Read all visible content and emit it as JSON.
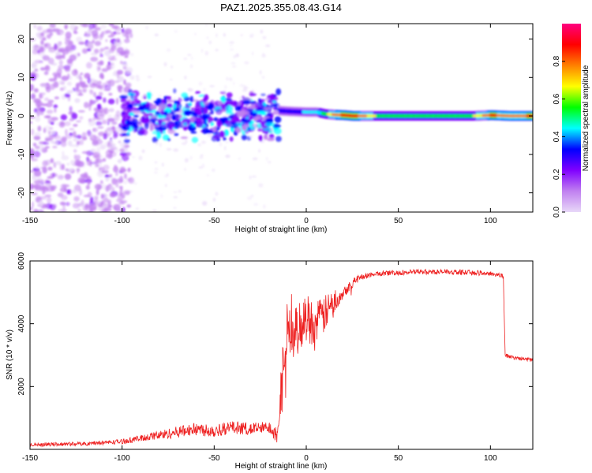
{
  "figure_title": "PAZ1.2025.355.08.43.G14",
  "chart_data": [
    {
      "type": "heatmap",
      "title": "PAZ1.2025.355.08.43.G14",
      "xlabel": "Height of straight line (km)",
      "ylabel": "Frequency (Hz)",
      "xlim": [
        -150,
        123
      ],
      "ylim": [
        -25,
        24
      ],
      "x_ticks": [
        -150,
        -100,
        -50,
        0,
        50,
        100
      ],
      "x_tick_labels": [
        "-150",
        "-100",
        "-50",
        "0",
        "50",
        "100"
      ],
      "y_ticks": [
        -20,
        -10,
        0,
        10,
        20
      ],
      "y_tick_labels": [
        "-20",
        "-10",
        "0",
        "10",
        "20"
      ],
      "colorbar": {
        "label": "Normalized spectral amplitude",
        "range": [
          0,
          1
        ],
        "ticks": [
          0.0,
          0.2,
          0.4,
          0.6,
          0.8
        ],
        "tick_labels": [
          "0.0",
          "0.2",
          "0.4",
          "0.6",
          "0.8"
        ],
        "colors": [
          "#e8d8f8",
          "#c080f0",
          "#8000ff",
          "#0000ff",
          "#00ffff",
          "#00ff00",
          "#ffff00",
          "#ff8000",
          "#ff0000",
          "#ff0080"
        ]
      },
      "features": [
        {
          "name": "scattered noise",
          "x_range": [
            -150,
            -95
          ],
          "freq_range": [
            -25,
            24
          ],
          "amplitude": 0.1
        },
        {
          "name": "broadband blob",
          "x_range": [
            -100,
            -15
          ],
          "freq_range": [
            -10,
            8
          ],
          "amplitude": 0.3
        },
        {
          "name": "carrier line",
          "x_range": [
            -15,
            123
          ],
          "freq_center": 0,
          "amplitude": 0.85
        }
      ],
      "carrier_track": {
        "x": [
          -20,
          -10,
          0,
          5,
          10,
          15,
          20,
          25,
          40,
          60,
          80,
          90,
          100,
          110,
          123
        ],
        "freq": [
          1.5,
          1.2,
          1.0,
          1.0,
          0.5,
          0.3,
          0.2,
          0.0,
          0.0,
          0.0,
          0.0,
          0.0,
          0.2,
          0.0,
          0.0
        ],
        "amplitude": [
          0.3,
          0.35,
          0.4,
          0.45,
          0.55,
          0.8,
          0.85,
          0.9,
          0.55,
          0.55,
          0.5,
          0.6,
          0.85,
          0.8,
          0.85
        ]
      }
    },
    {
      "type": "line",
      "xlabel": "Height of straight line (km)",
      "ylabel": "SNR (10 * v/v)",
      "xlim": [
        -150,
        123
      ],
      "ylim": [
        0,
        6000
      ],
      "x_ticks": [
        -150,
        -100,
        -50,
        0,
        50,
        100
      ],
      "x_tick_labels": [
        "-150",
        "-100",
        "-50",
        "0",
        "50",
        "100"
      ],
      "y_ticks": [
        2000,
        4000,
        6000
      ],
      "y_tick_labels": [
        "2000",
        "4000",
        "6000"
      ],
      "line_color": "#ee2222",
      "series": [
        {
          "name": "SNR",
          "x": [
            -150,
            -120,
            -100,
            -90,
            -80,
            -70,
            -60,
            -50,
            -40,
            -30,
            -20,
            -16,
            -14,
            -12,
            -10,
            -8,
            -5,
            0,
            5,
            10,
            15,
            20,
            25,
            30,
            40,
            60,
            80,
            100,
            105,
            107,
            108,
            110,
            115,
            123
          ],
          "y": [
            150,
            180,
            250,
            350,
            450,
            550,
            650,
            600,
            700,
            650,
            700,
            500,
            1800,
            3000,
            4000,
            3500,
            3800,
            4200,
            4000,
            4300,
            4700,
            5000,
            5300,
            5500,
            5600,
            5650,
            5650,
            5600,
            5550,
            5500,
            3000,
            2950,
            2900,
            2850
          ],
          "noise": [
            60,
            60,
            80,
            100,
            150,
            180,
            200,
            220,
            200,
            200,
            200,
            300,
            800,
            900,
            900,
            900,
            800,
            800,
            700,
            600,
            400,
            200,
            150,
            100,
            80,
            80,
            80,
            80,
            80,
            80,
            60,
            60,
            60,
            60
          ]
        }
      ]
    }
  ]
}
